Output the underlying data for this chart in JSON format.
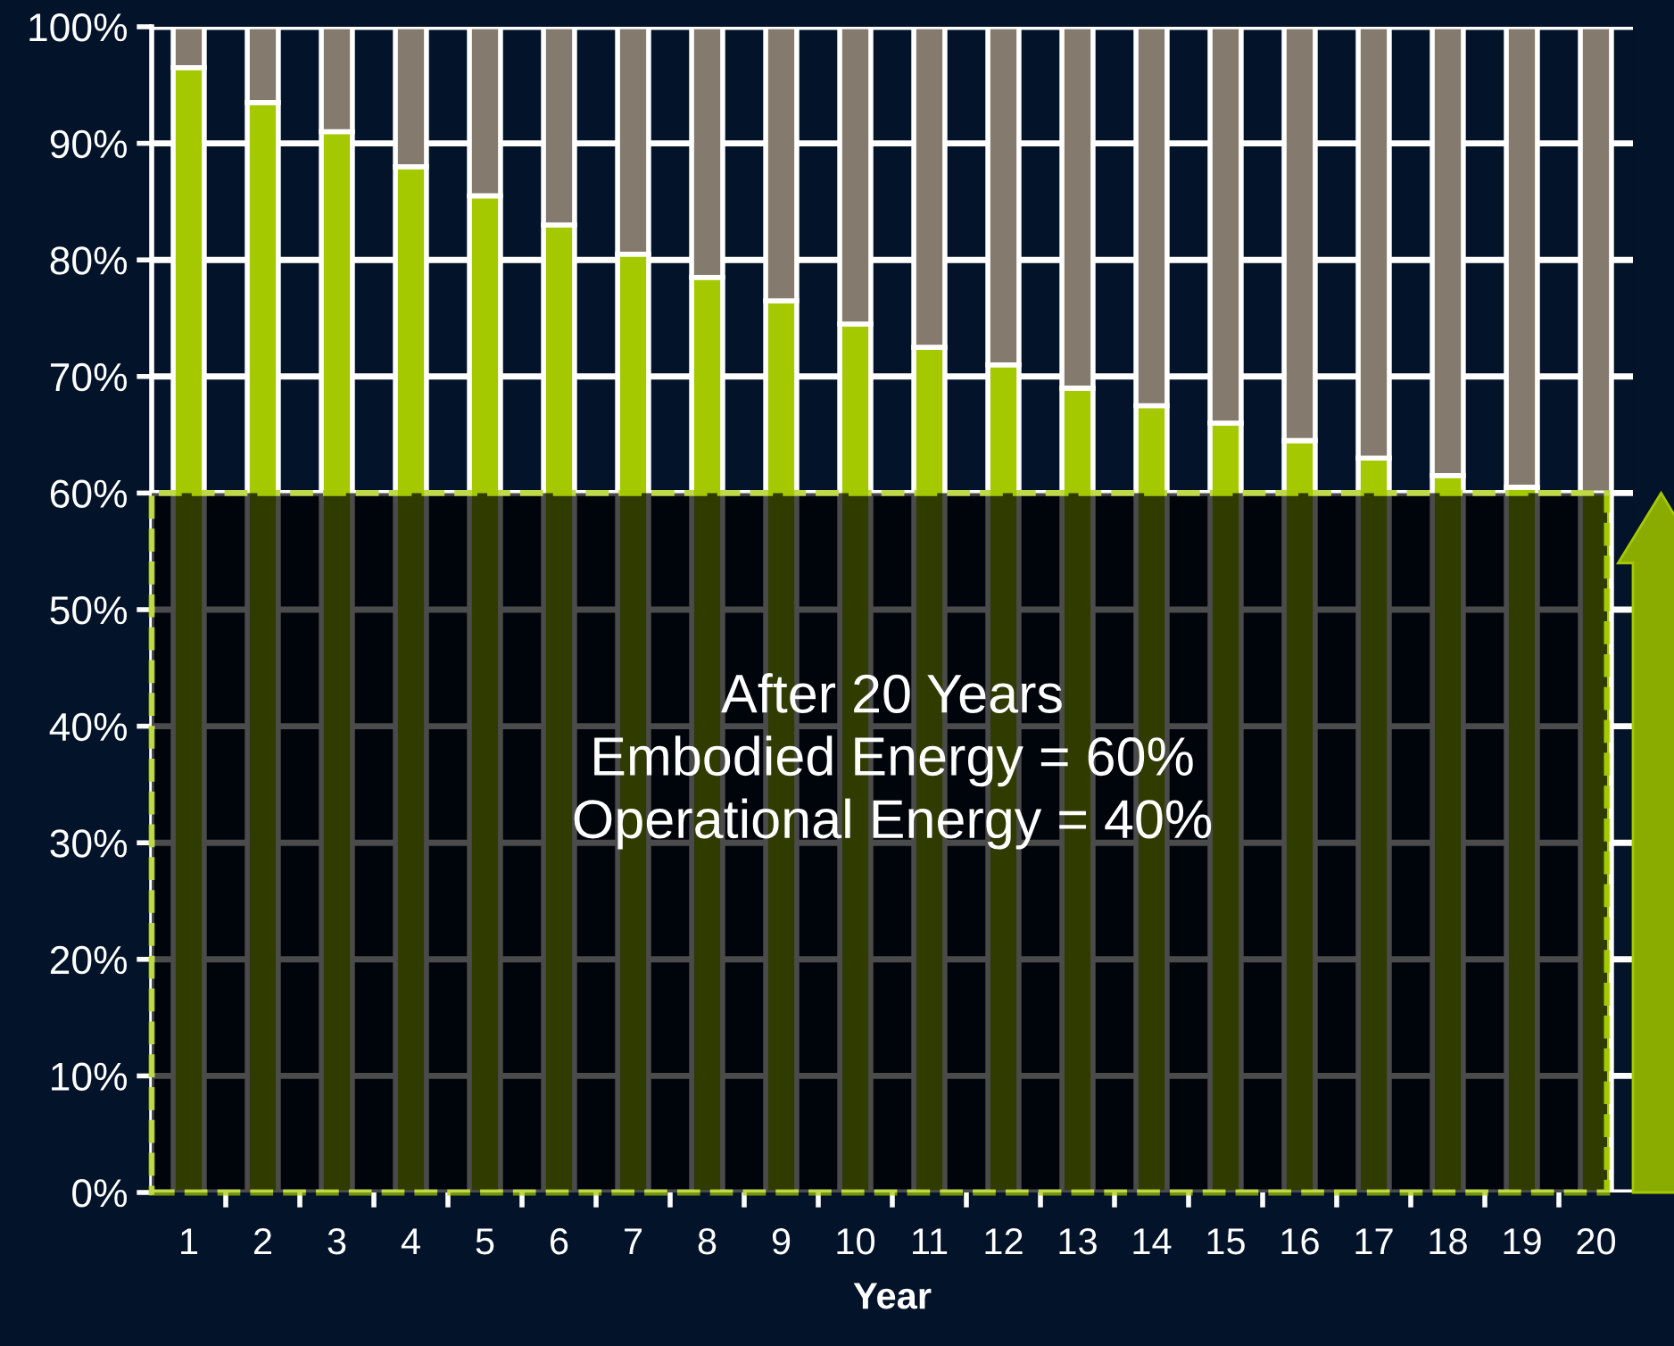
{
  "chart_data": {
    "type": "bar",
    "stacked": true,
    "xlabel": "Year",
    "categories": [
      "1",
      "2",
      "3",
      "4",
      "5",
      "6",
      "7",
      "8",
      "9",
      "10",
      "11",
      "12",
      "13",
      "14",
      "15",
      "16",
      "17",
      "18",
      "19",
      "20"
    ],
    "series": [
      {
        "color": "#a4c900",
        "values": [
          96.5,
          93.5,
          91,
          88,
          85.5,
          83,
          80.5,
          78.5,
          76.5,
          74.5,
          72.5,
          71,
          69,
          67.5,
          66,
          64.5,
          63,
          61.5,
          60.5,
          60
        ]
      },
      {
        "color": "#857a6e",
        "values": [
          3.5,
          6.5,
          9,
          12,
          14.5,
          17,
          19.5,
          21.5,
          23.5,
          25.5,
          27.5,
          29,
          31,
          32.5,
          34,
          35.5,
          37,
          38.5,
          39.5,
          40
        ]
      }
    ],
    "ylim": [
      0,
      100
    ],
    "yticks": [
      {
        "value": 0,
        "label": "0%"
      },
      {
        "value": 10,
        "label": "10%"
      },
      {
        "value": 20,
        "label": "20%"
      },
      {
        "value": 30,
        "label": "30%"
      },
      {
        "value": 40,
        "label": "40%"
      },
      {
        "value": 50,
        "label": "50%"
      },
      {
        "value": 60,
        "label": "60%"
      },
      {
        "value": 70,
        "label": "70%"
      },
      {
        "value": 80,
        "label": "80%"
      },
      {
        "value": 90,
        "label": "90%"
      },
      {
        "value": 100,
        "label": "100%"
      }
    ],
    "grid": "y",
    "bands": [
      {
        "axis": "y",
        "from": 0,
        "to": 60,
        "color": "#000000"
      }
    ],
    "annotations": [
      "After 20 Years\nEmbodied Energy = 60%\nOperational Energy = 40%"
    ]
  }
}
